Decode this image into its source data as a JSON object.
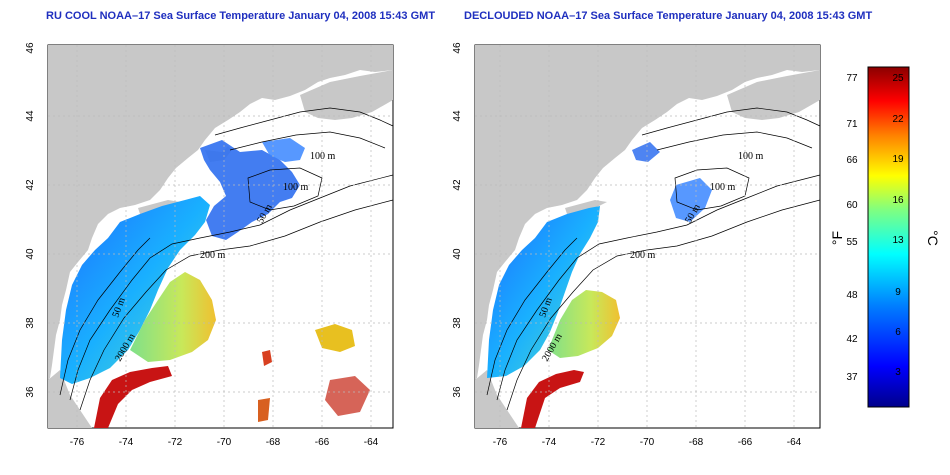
{
  "titles": {
    "left": "RU COOL NOAA–17 Sea Surface Temperature January 04, 2008 15:43 GMT",
    "right": "DECLOUDED NOAA–17 Sea Surface Temperature January 04, 2008 15:43 GMT"
  },
  "axes": {
    "lon_ticks": [
      "-76",
      "-74",
      "-72",
      "-70",
      "-68",
      "-66",
      "-64"
    ],
    "lat_ticks": [
      "36",
      "38",
      "40",
      "42",
      "44",
      "46"
    ]
  },
  "contour_labels": {
    "left": [
      "100 m",
      "100 m",
      "50 m",
      "200 m",
      "50 m",
      "2000 m"
    ],
    "right": [
      "100 m",
      "100 m",
      "50 m",
      "200 m",
      "50 m",
      "2000 m"
    ]
  },
  "colorbar": {
    "fahrenheit_label": "°F",
    "celsius_label": "°C",
    "fahrenheit_ticks": [
      "77",
      "71",
      "66",
      "60",
      "55",
      "48",
      "42",
      "37"
    ],
    "celsius_ticks": [
      "25",
      "22",
      "19",
      "16",
      "13",
      "9",
      "6",
      "3"
    ],
    "colors": [
      "#00008b",
      "#0000ff",
      "#0080ff",
      "#00ffff",
      "#80ff80",
      "#ffff00",
      "#ff8000",
      "#ff0000",
      "#8b0000"
    ]
  },
  "colors": {
    "land": "#c8c8c8",
    "cold_water": "#1e6cff",
    "warm_gulf_stream": "#c81414",
    "title": "#1f2fbf"
  }
}
